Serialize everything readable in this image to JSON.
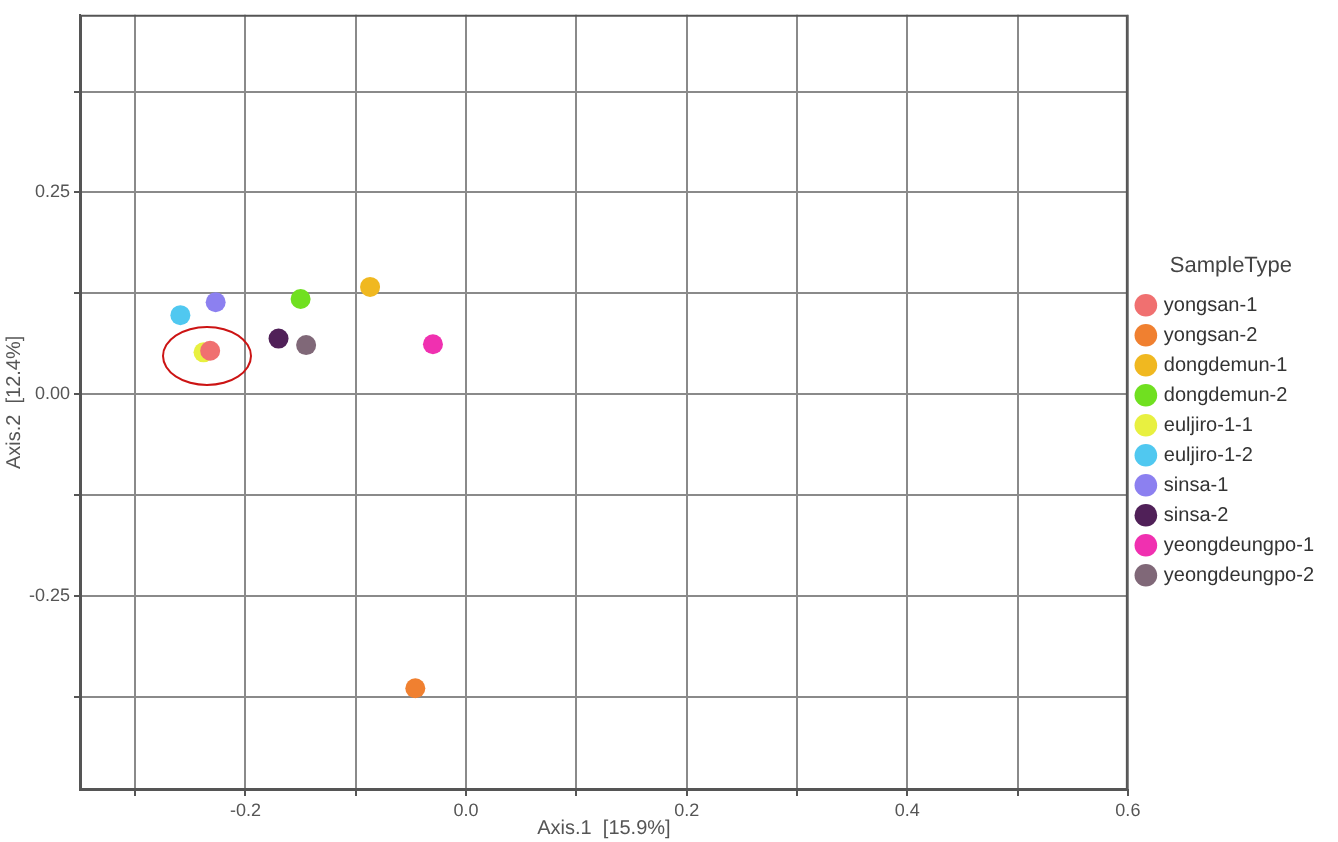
{
  "chart_data": {
    "type": "scatter",
    "xlabel": "Axis.1  [15.9%]",
    "ylabel": "Axis.2  [12.4%]",
    "legend_title": "SampleType",
    "xlim": [
      -0.35,
      0.6
    ],
    "ylim": [
      -0.49,
      0.47
    ],
    "xticks": [
      {
        "value": -0.3,
        "label": null
      },
      -0.2,
      {
        "value": -0.1,
        "label": null
      },
      {
        "value": 0,
        "label": "0.0"
      },
      {
        "value": 0.1,
        "label": null
      },
      0.2,
      {
        "value": 0.3,
        "label": null
      },
      0.4,
      {
        "value": 0.5,
        "label": null
      },
      0.6
    ],
    "yticks": [
      {
        "value": -0.375,
        "label": null
      },
      -0.25,
      {
        "value": -0.125,
        "label": null
      },
      {
        "value": 0,
        "label": "0.00"
      },
      {
        "value": 0.125,
        "label": null
      },
      0.25,
      {
        "value": 0.375,
        "label": null
      }
    ],
    "grid": true,
    "legend": "right",
    "marker": "circle",
    "series": [
      {
        "name": "yongsan-1",
        "color": "#f07070",
        "x": [
          -0.232
        ],
        "values": [
          0.054
        ]
      },
      {
        "name": "yongsan-2",
        "color": "#f08030",
        "x": [
          -0.046
        ],
        "values": [
          -0.364
        ]
      },
      {
        "name": "dongdemun-1",
        "color": "#f0b820",
        "x": [
          -0.087
        ],
        "values": [
          0.133
        ]
      },
      {
        "name": "dongdemun-2",
        "color": "#70e020",
        "x": [
          -0.15
        ],
        "values": [
          0.118
        ]
      },
      {
        "name": "euljiro-1-1",
        "color": "#e8f040",
        "x": [
          -0.238
        ],
        "values": [
          0.052
        ]
      },
      {
        "name": "euljiro-1-2",
        "color": "#50c8f0",
        "x": [
          -0.259
        ],
        "values": [
          0.098
        ]
      },
      {
        "name": "sinsa-1",
        "color": "#8c80f0",
        "x": [
          -0.227
        ],
        "values": [
          0.114
        ]
      },
      {
        "name": "sinsa-2",
        "color": "#502058",
        "x": [
          -0.17
        ],
        "values": [
          0.069
        ]
      },
      {
        "name": "yeongdeungpo-1",
        "color": "#f030b0",
        "x": [
          -0.03
        ],
        "values": [
          0.062
        ]
      },
      {
        "name": "yeongdeungpo-2",
        "color": "#806878",
        "x": [
          -0.145
        ],
        "values": [
          0.061
        ]
      }
    ]
  }
}
